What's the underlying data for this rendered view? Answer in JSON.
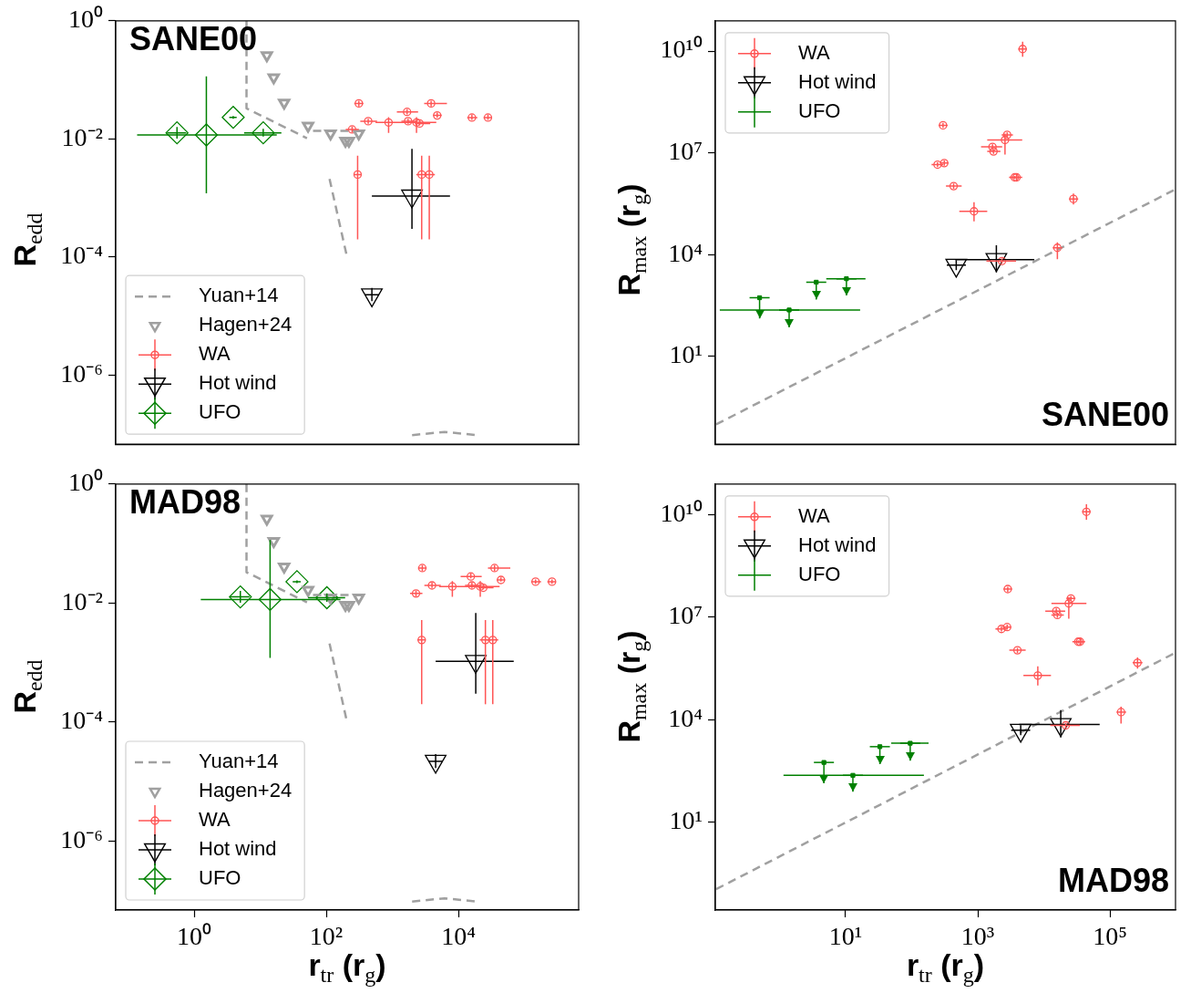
{
  "chart_data": [
    {
      "type": "scatter",
      "ylabel": "R$_{edd}$",
      "annotations": [
        "SANE00"
      ],
      "log": "xy",
      "xlim": [
        0.065,
        660000
      ],
      "ylim": [
        6.8e-08,
        1
      ],
      "xticks": [
        {
          "value": 1,
          "label": null
        },
        {
          "value": 100,
          "label": null
        },
        {
          "value": 10000,
          "label": null
        }
      ],
      "yticks": [
        {
          "value": 1e-06,
          "label": "10⁻⁶"
        },
        {
          "value": 0.0001,
          "label": "10⁻⁴"
        },
        {
          "value": 0.01,
          "label": "10⁻²"
        },
        {
          "value": 1,
          "label": "10⁰"
        }
      ],
      "tick_labels": "y",
      "legend": "bottom left",
      "series": [
        {
          "name": "Yuan+14",
          "type": "line",
          "color": "#a0a0a0",
          "line_style": "dashed",
          "marker": "none",
          "x": [
            6.2,
            6.2,
            51,
            null,
            63,
            275,
            null,
            112,
            203,
            null,
            1990,
            6200,
            19400
          ],
          "values": [
            1,
            0.033,
            0.0103,
            null,
            0.0137,
            0.0137,
            null,
            0.0021,
            0.000108,
            null,
            9.7e-08,
            1.1e-07,
            9.7e-08
          ]
        },
        {
          "name": "Hagen+24",
          "type": "scatter",
          "color": "#a0a0a0",
          "marker": "triangle",
          "x": [
            12.6,
            16,
            23,
            53,
            116,
            195,
            220,
            310
          ],
          "values": [
            0.26,
            0.11,
            0.041,
            0.0166,
            0.0123,
            0.0093,
            0.0093,
            0.0123
          ]
        },
        {
          "name": "WA",
          "type": "scatter",
          "color": "#ff5555",
          "marker": "circle",
          "x": [
            311,
            246,
            431,
            877,
            1670,
            1730,
            2320,
            2580,
            3860,
            4770,
            16000,
            28000,
            298,
            2780,
            3620
          ],
          "values": [
            0.04,
            0.0145,
            0.02,
            0.019,
            0.0287,
            0.02,
            0.019,
            0.0183,
            0.04,
            0.025,
            0.023,
            0.023,
            0.0025,
            0.0025,
            0.0025
          ],
          "errors": [
            [
              0.0355,
              0.0444
            ],
            [
              0.0129,
              0.0162
            ],
            [
              0.018,
              0.022
            ],
            [
              0.0127,
              0.0234
            ],
            [
              0.026,
              0.032
            ],
            [
              0.018,
              0.022
            ],
            [
              0.0127,
              0.0234
            ],
            [
              0.017,
              0.02
            ],
            [
              0.0355,
              0.0444
            ],
            [
              0.023,
              0.028
            ],
            [
              0.021,
              0.026
            ],
            [
              0.021,
              0.026
            ],
            [
              0.0002,
              0.0052
            ],
            [
              0.0002,
              0.0052
            ],
            [
              0.0002,
              0.0052
            ]
          ],
          "xerrors": [
            [
              265,
              364
            ],
            [
              197,
              311
            ],
            [
              327,
              586
            ],
            [
              556,
              2320
            ],
            [
              1170,
              2450
            ],
            [
              1370,
              2320
            ],
            [
              1690,
              4620
            ],
            [
              2200,
              3740
            ],
            [
              3030,
              6700
            ],
            [
              4150,
              5580
            ],
            [
              13600,
              19300
            ],
            [
              24000,
              32000
            ],
            [
              260,
              340
            ],
            [
              2300,
              3400
            ],
            [
              3000,
              4400
            ]
          ]
        },
        {
          "name": "Hot wind",
          "type": "scatter",
          "color": "#000000",
          "marker": "triangle",
          "x": [
            1980,
            490
          ],
          "values": [
            0.00108,
            2.3e-05
          ],
          "errors": [
            [
              0.0003,
              0.0068
            ],
            [
              1.8e-05,
              3e-05
            ]
          ],
          "xerrors": [
            [
              490,
              7450
            ],
            [
              380,
              630
            ]
          ]
        },
        {
          "name": "UFO",
          "type": "scatter",
          "color": "#008000",
          "marker": "diamond",
          "x": [
            0.55,
            1.53,
            3.9,
            11.1
          ],
          "values": [
            0.0127,
            0.0117,
            0.0232,
            0.0127
          ],
          "errors": [
            [
              0.0101,
              0.016
            ],
            [
              0.0012,
              0.115
            ],
            [
              0.022,
              0.0245
            ],
            [
              0.011,
              0.0148
            ]
          ],
          "xerrors": [
            [
              0.39,
              0.76
            ],
            [
              0.137,
              17.8
            ],
            [
              3.4,
              4.4
            ],
            [
              5.7,
              20.9
            ]
          ]
        }
      ]
    },
    {
      "type": "scatter",
      "ylabel": "R$_{max}$ (r$_{g}$)",
      "annotations": [
        "SANE00"
      ],
      "log": "xy",
      "xlim": [
        0.107,
        980000
      ],
      "ylim": [
        0.026,
        78000000000.0
      ],
      "xticks": [
        {
          "value": 10,
          "label": null
        },
        {
          "value": 1000,
          "label": null
        },
        {
          "value": 100000,
          "label": null
        }
      ],
      "yticks": [
        {
          "value": 10,
          "label": "10¹"
        },
        {
          "value": 10000,
          "label": "10⁴"
        },
        {
          "value": 10000000,
          "label": "10⁷"
        },
        {
          "value": 10000000000,
          "label": "10¹⁰"
        }
      ],
      "tick_labels": "y",
      "legend": "top left",
      "series": [
        {
          "type": "line",
          "color": "#a0a0a0",
          "line_style": "dashed",
          "marker": "none",
          "x": [
            0.11,
            950000
          ],
          "values": [
            0.1,
            820000
          ]
        },
        {
          "name": "WA",
          "type": "scatter",
          "color": "#ff5555",
          "marker": "circle",
          "x": [
            311,
            246,
            431,
            877,
            1670,
            1730,
            2320,
            2580,
            3860,
            4770,
            16000,
            28000,
            298,
            2780,
            3620
          ],
          "values": [
            5000000.0,
            4500000.0,
            1050000.0,
            190000.0,
            15000000.0,
            11000000.0,
            6500.0,
            24000000.0,
            1900000.0,
            11500000000.0,
            16000.0,
            440000.0,
            65000000.0,
            34000000.0,
            1900000.0
          ],
          "errors": [
            [
              4200000.0,
              6000000.0
            ],
            [
              3800000.0,
              5300000.0
            ],
            [
              880000.0,
              1250000.0
            ],
            [
              96000.0,
              350000.0
            ],
            [
              12500000.0,
              18000000.0
            ],
            [
              9300000.0,
              13000000.0
            ],
            [
              5500.0,
              7700.0
            ],
            [
              8900000.0,
              37000000.0
            ],
            [
              1500000.0,
              2400000.0
            ],
            [
              6800000000.0,
              19000000000.0
            ],
            [
              7400.0,
              23000.0
            ],
            [
              300000.0,
              630000.0
            ],
            [
              55000000.0,
              77000000.0
            ],
            [
              29000000.0,
              40000000.0
            ],
            [
              1700000.0,
              2100000.0
            ]
          ],
          "xerrors": [
            [
              270,
              360
            ],
            [
              200,
              300
            ],
            [
              330,
              570
            ],
            [
              525,
              1390
            ],
            [
              1120,
              2340
            ],
            [
              1390,
              2200
            ],
            [
              1350,
              3800
            ],
            [
              1390,
              4700
            ],
            [
              3000,
              4700
            ],
            [
              4100,
              5500
            ],
            [
              13600,
              19000
            ],
            [
              24000,
              33000
            ],
            [
              255,
              350
            ],
            [
              2300,
              3400
            ],
            [
              3000,
              4400
            ]
          ]
        },
        {
          "name": "Hot wind",
          "type": "scatter",
          "color": "#000000",
          "marker": "triangle",
          "x": [
            472,
            1910
          ],
          "values": [
            4900,
            7200
          ],
          "errors": [
            [
              3500,
              6900
            ],
            [
              3000,
              19000
            ]
          ],
          "xerrors": [
            [
              340,
              660
            ],
            [
              457,
              7160
            ]
          ]
        },
        {
          "name": "UFO",
          "type": "scatter",
          "color": "#008000",
          "x": [
            0.5,
            1.4,
            3.6,
            10.3
          ],
          "values": [
            540,
            235,
            1550,
            1960
          ],
          "errors": [
            [
              132,
              540
            ],
            [
              72,
              235
            ],
            [
              480,
              1550
            ],
            [
              630,
              1960
            ]
          ],
          "xerrors": [
            null,
            [
              0.125,
              16.6
            ],
            null,
            [
              5.1,
              20
            ]
          ]
        }
      ]
    },
    {
      "type": "scatter",
      "xlabel": "r$_{tr}$ (r$_{g}$)",
      "ylabel": "R$_{edd}$",
      "annotations": [
        "MAD98"
      ],
      "log": "xy",
      "xlim": [
        0.065,
        660000
      ],
      "ylim": [
        7e-08,
        1
      ],
      "xticks": [
        {
          "value": 1,
          "label": "10⁰"
        },
        {
          "value": 100,
          "label": "10²"
        },
        {
          "value": 10000,
          "label": "10⁴"
        }
      ],
      "yticks": [
        {
          "value": 1e-06,
          "label": "10⁻⁶"
        },
        {
          "value": 0.0001,
          "label": "10⁻⁴"
        },
        {
          "value": 0.01,
          "label": "10⁻²"
        },
        {
          "value": 1,
          "label": "10⁰"
        }
      ],
      "legend": "bottom left",
      "series": [
        {
          "name": "Yuan+14",
          "type": "line",
          "color": "#a0a0a0",
          "line_style": "dashed",
          "marker": "none",
          "x": [
            6.2,
            6.2,
            51,
            null,
            63,
            275,
            null,
            112,
            203,
            null,
            1990,
            6200,
            19400
          ],
          "values": [
            1,
            0.033,
            0.0103,
            null,
            0.0137,
            0.0137,
            null,
            0.0021,
            0.000108,
            null,
            9.7e-08,
            1.1e-07,
            9.7e-08
          ]
        },
        {
          "name": "Hagen+24",
          "type": "scatter",
          "color": "#a0a0a0",
          "marker": "triangle",
          "x": [
            12.6,
            16,
            23,
            53,
            116,
            195,
            220,
            310
          ],
          "values": [
            0.26,
            0.11,
            0.041,
            0.0166,
            0.0123,
            0.0093,
            0.0093,
            0.0123
          ]
        },
        {
          "name": "WA",
          "type": "scatter",
          "color": "#ff5555",
          "marker": "circle",
          "x": [
            2840,
            2280,
            3980,
            8090,
            15400,
            16000,
            21400,
            23800,
            35200,
            44000,
            147000,
            261000,
            2780,
            25600,
            33100
          ],
          "values": [
            0.0388,
            0.0145,
            0.0198,
            0.019,
            0.028,
            0.0198,
            0.019,
            0.0181,
            0.0388,
            0.0245,
            0.0229,
            0.0229,
            0.0024,
            0.0024,
            0.0024
          ],
          "errors": [
            [
              0.0345,
              0.0435
            ],
            [
              0.0129,
              0.0162
            ],
            [
              0.018,
              0.022
            ],
            [
              0.0127,
              0.0234
            ],
            [
              0.026,
              0.032
            ],
            [
              0.018,
              0.022
            ],
            [
              0.0127,
              0.0234
            ],
            [
              0.017,
              0.02
            ],
            [
              0.0345,
              0.0435
            ],
            [
              0.023,
              0.027
            ],
            [
              0.021,
              0.025
            ],
            [
              0.021,
              0.025
            ],
            [
              0.0002,
              0.0052
            ],
            [
              0.0002,
              0.0052
            ],
            [
              0.0002,
              0.0052
            ]
          ],
          "xerrors": [
            [
              2450,
              3300
            ],
            [
              1850,
              2850
            ],
            [
              3050,
              5400
            ],
            [
              5100,
              21000
            ],
            [
              10800,
              22500
            ],
            [
              12600,
              21000
            ],
            [
              15600,
              42000
            ],
            [
              20000,
              34000
            ],
            [
              28000,
              61000
            ],
            [
              38000,
              51000
            ],
            [
              126000,
              178000
            ],
            [
              222000,
              300000
            ],
            [
              2400,
              3200
            ],
            [
              21000,
              31000
            ],
            [
              27000,
              40000
            ]
          ]
        },
        {
          "name": "Hot wind",
          "type": "scatter",
          "color": "#000000",
          "marker": "triangle",
          "x": [
            18300,
            4520
          ],
          "values": [
            0.00105,
            2.2e-05
          ],
          "errors": [
            [
              0.0003,
              0.0068
            ],
            [
              1.7e-05,
              2.9e-05
            ]
          ],
          "xerrors": [
            [
              4520,
              68700
            ],
            [
              3500,
              5800
            ]
          ]
        },
        {
          "name": "UFO",
          "type": "scatter",
          "color": "#008000",
          "marker": "diamond",
          "x": [
            5.0,
            14.1,
            36,
            102
          ],
          "values": [
            0.0127,
            0.0115,
            0.0229,
            0.0123
          ],
          "errors": [
            [
              0.0101,
              0.016
            ],
            [
              0.0012,
              0.115
            ],
            [
              0.0217,
              0.024
            ],
            [
              0.0105,
              0.0145
            ]
          ],
          "xerrors": [
            [
              3.5,
              6.9
            ],
            [
              1.26,
              164
            ],
            [
              31,
              41
            ],
            [
              53,
              193
            ]
          ]
        }
      ]
    },
    {
      "type": "scatter",
      "xlabel": "r$_{tr}$ (r$_{g}$)",
      "ylabel": "R$_{max}$ (r$_{g}$)",
      "annotations": [
        "MAD98"
      ],
      "log": "xy",
      "xlim": [
        0.107,
        980000
      ],
      "ylim": [
        0.027,
        78000000000.0
      ],
      "xticks": [
        {
          "value": 10,
          "label": "10¹"
        },
        {
          "value": 1000,
          "label": "10³"
        },
        {
          "value": 100000,
          "label": "10⁵"
        }
      ],
      "yticks": [
        {
          "value": 10,
          "label": "10¹"
        },
        {
          "value": 10000,
          "label": "10⁴"
        },
        {
          "value": 10000000,
          "label": "10⁷"
        },
        {
          "value": 10000000000,
          "label": "10¹⁰"
        }
      ],
      "legend": "top left",
      "series": [
        {
          "type": "line",
          "color": "#a0a0a0",
          "line_style": "dashed",
          "marker": "none",
          "x": [
            0.11,
            950000
          ],
          "values": [
            0.11,
            880000
          ]
        },
        {
          "name": "WA",
          "type": "scatter",
          "color": "#ff5555",
          "marker": "circle",
          "x": [
            2840,
            2280,
            3980,
            8090,
            15400,
            16000,
            21400,
            23800,
            35200,
            44000,
            147000,
            261000,
            2780,
            25600,
            33100
          ],
          "values": [
            66000000.0,
            4500000.0,
            1070000.0,
            195000.0,
            15000000.0,
            11500000.0,
            6800.0,
            25000000.0,
            1900000.0,
            12000000000.0,
            16600.0,
            460000.0,
            5100000.0,
            35000000.0,
            1900000.0
          ],
          "errors": [
            [
              55000000.0,
              77000000.0
            ],
            [
              3800000.0,
              5300000.0
            ],
            [
              880000.0,
              1250000.0
            ],
            [
              100000.0,
              360000.0
            ],
            [
              12500000.0,
              18000000.0
            ],
            [
              9500000.0,
              13500000.0
            ],
            [
              5700.0,
              8000.0
            ],
            [
              9000000.0,
              38000000.0
            ],
            [
              1500000.0,
              2400000.0
            ],
            [
              7000000000.0,
              20000000000.0
            ],
            [
              7700.0,
              24000.0
            ],
            [
              310000.0,
              660000.0
            ],
            [
              4300000.0,
              6000000.0
            ],
            [
              30000000.0,
              41000000.0
            ],
            [
              1700000.0,
              2100000.0
            ]
          ],
          "xerrors": [
            [
              2450,
              3300
            ],
            [
              1850,
              2750
            ],
            [
              3000,
              5300
            ],
            [
              4900,
              12800
            ],
            [
              10500,
              21000
            ],
            [
              13000,
              20000
            ],
            [
              12500,
              35000
            ],
            [
              13000,
              44000
            ],
            [
              29000,
              42000
            ],
            [
              38000,
              51000
            ],
            [
              126000,
              175000
            ],
            [
              220000,
              310000
            ],
            [
              2400,
              3200
            ],
            [
              22000,
              30000
            ],
            [
              27000,
              40000
            ]
          ]
        },
        {
          "name": "Hot wind",
          "type": "scatter",
          "color": "#000000",
          "marker": "triangle",
          "x": [
            4460,
            18000
          ],
          "values": [
            4900,
            7200
          ],
          "errors": [
            [
              3500,
              6900
            ],
            [
              3000,
              19000
            ]
          ],
          "xerrors": [
            [
              3200,
              6200
            ],
            [
              4230,
              69800
            ]
          ]
        },
        {
          "name": "UFO",
          "type": "scatter",
          "color": "#008000",
          "x": [
            4.7,
            12.9,
            33,
            95
          ],
          "values": [
            560,
            235,
            1620,
            2040
          ],
          "errors": [
            [
              138,
              560
            ],
            [
              78,
              235
            ],
            [
              500,
              1620
            ],
            [
              630,
              2040
            ]
          ],
          "xerrors": [
            null,
            [
              1.15,
              153
            ],
            null,
            [
              49,
              180
            ]
          ]
        }
      ]
    }
  ]
}
